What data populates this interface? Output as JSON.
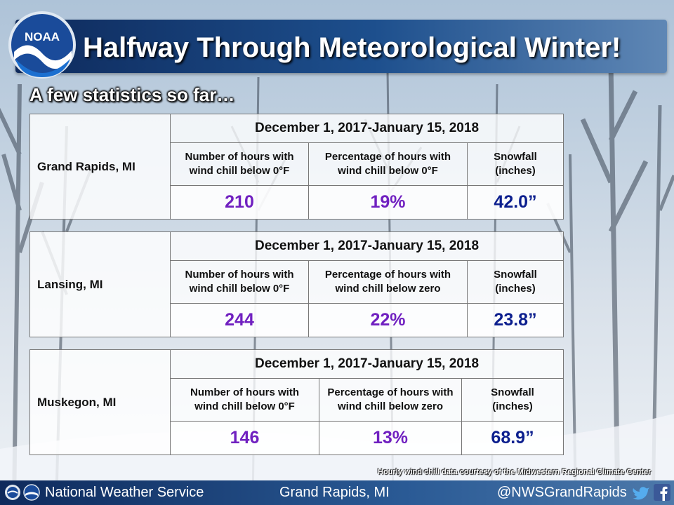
{
  "header": {
    "title": "Halfway Through Meteorological Winter!",
    "logo_text": "NOAA"
  },
  "subtitle": "A few statistics so far…",
  "tables": [
    {
      "city": "Grand Rapids, MI",
      "date_range": "December 1, 2017-January 15, 2018",
      "col1_header": [
        "Number of hours with",
        "wind chill below 0°F"
      ],
      "col2_header": [
        "Percentage of hours with",
        "wind chill below 0°F"
      ],
      "col3_header": [
        "Snowfall",
        "(inches)"
      ],
      "hours": "210",
      "percent": "19%",
      "snowfall": "42.0”"
    },
    {
      "city": "Lansing, MI",
      "date_range": "December 1, 2017-January 15, 2018",
      "col1_header": [
        "Number of hours with",
        "wind chill below 0°F"
      ],
      "col2_header": [
        "Percentage of hours with",
        "wind chill below zero"
      ],
      "col3_header": [
        "Snowfall",
        "(inches)"
      ],
      "hours": "244",
      "percent": "22%",
      "snowfall": "23.8”"
    },
    {
      "city": "Muskegon, MI",
      "date_range": "December 1, 2017-January 15, 2018",
      "col1_header": [
        "Number of hours with",
        "wind chill below 0°F"
      ],
      "col2_header": [
        "Percentage of hours with",
        "wind chill below zero"
      ],
      "col3_header": [
        "Snowfall",
        "(inches)"
      ],
      "hours": "146",
      "percent": "13%",
      "snowfall": "68.9”"
    }
  ],
  "credit": "Hourly wind chill data courtesy of the Midwestern Regional Climate Center",
  "footer": {
    "agency": "National Weather Service",
    "office": "Grand Rapids, MI",
    "handle": "@NWSGrandRapids",
    "social_icons": [
      "twitter-icon",
      "facebook-icon"
    ]
  },
  "colors": {
    "value_purple": "#7020c0",
    "value_navy": "#0c1f8e",
    "banner_blue": "#0e2a5c"
  }
}
